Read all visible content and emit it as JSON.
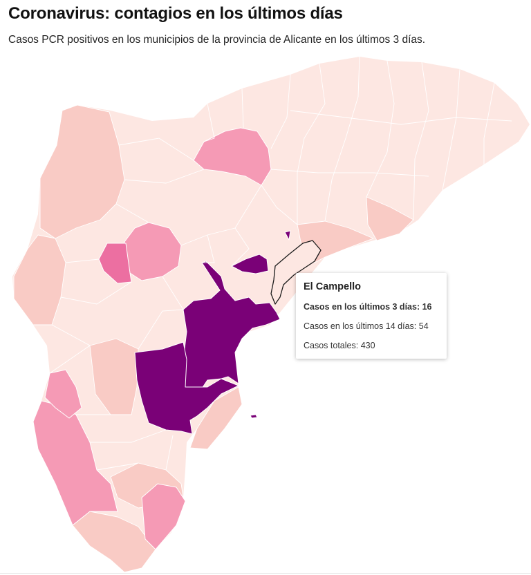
{
  "header": {
    "title": "Coronavirus: contagios en los últimos días",
    "subtitle": "Casos PCR positivos en los municipios de la provincia de Alicante en los últimos 3 días."
  },
  "map": {
    "region": "Provincia de Alicante",
    "selected_municipality": "El Campello",
    "colors": {
      "very_low": "#fde7e2",
      "low": "#f9cbc5",
      "medium": "#f59ab5",
      "high": "#ec6fa1",
      "very_high": "#7a0177",
      "border_selected": "#1a1a1a"
    }
  },
  "tooltip": {
    "name": "El Campello",
    "cases_3d_label": "Casos en los últimos 3 días:",
    "cases_3d_value": "16",
    "cases_14d_label": "Casos en los últimos 14 días:",
    "cases_14d_value": "54",
    "cases_total_label": "Casos totales:",
    "cases_total_value": "430"
  }
}
